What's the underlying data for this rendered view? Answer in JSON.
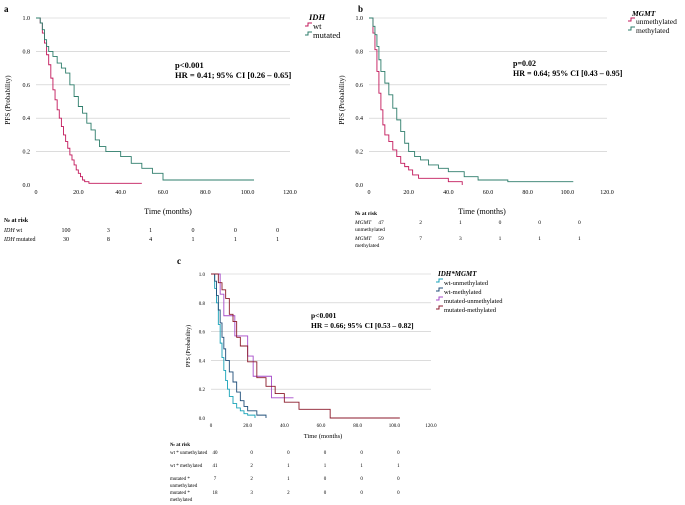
{
  "chart_data": [
    {
      "type": "line",
      "panel_label": "a",
      "xlabel": "Time (months)",
      "ylabel": "PFS (Probability)",
      "xlim": [
        0,
        120
      ],
      "ylim": [
        0,
        1.0
      ],
      "x_ticks": [
        "0",
        "20.0",
        "40.0",
        "60.0",
        "80.0",
        "100.0",
        "120.0"
      ],
      "y_ticks": [
        "0.0",
        "0.2",
        "0.4",
        "0.6",
        "0.8",
        "1.0"
      ],
      "grid": "horizontal",
      "legend": {
        "title": "IDH",
        "placement": "top-right"
      },
      "annotation": [
        "p<0.001",
        "HR = 0.41; 95% CI [0.26 – 0.65]"
      ],
      "series": [
        {
          "name": "wt",
          "color": "#c2185b",
          "x": [
            0,
            2,
            3,
            4,
            5,
            6,
            7,
            8,
            9,
            10,
            11,
            12,
            13,
            14,
            15,
            16,
            17,
            18,
            19,
            20,
            21,
            22,
            23,
            25,
            28,
            30,
            35,
            50
          ],
          "y": [
            1.0,
            0.97,
            0.91,
            0.85,
            0.78,
            0.72,
            0.64,
            0.57,
            0.51,
            0.45,
            0.4,
            0.35,
            0.3,
            0.26,
            0.22,
            0.18,
            0.15,
            0.12,
            0.09,
            0.07,
            0.05,
            0.03,
            0.02,
            0.01,
            0.01,
            0.01,
            0.01,
            0.01
          ]
        },
        {
          "name": "mutated",
          "color": "#2e7d6b",
          "x": [
            0,
            2,
            3,
            4,
            5,
            6,
            8,
            10,
            12,
            14,
            16,
            18,
            20,
            22,
            24,
            26,
            28,
            30,
            33,
            36,
            40,
            45,
            50,
            55,
            60,
            65,
            75,
            90,
            103
          ],
          "y": [
            1.0,
            0.97,
            0.93,
            0.87,
            0.83,
            0.8,
            0.77,
            0.73,
            0.7,
            0.67,
            0.6,
            0.53,
            0.47,
            0.43,
            0.37,
            0.33,
            0.27,
            0.23,
            0.2,
            0.2,
            0.17,
            0.13,
            0.1,
            0.07,
            0.03,
            0.03,
            0.03,
            0.03,
            0.03
          ]
        }
      ],
      "risk_table": {
        "title": "№ at risk",
        "rows": [
          {
            "group": "IDH",
            "subtitle": "wt",
            "values": [
              "100",
              "3",
              "1",
              "0",
              "0",
              "0"
            ]
          },
          {
            "group": "IDH",
            "subtitle": "mutated",
            "values": [
              "30",
              "8",
              "4",
              "1",
              "1",
              "1"
            ]
          }
        ]
      }
    },
    {
      "type": "line",
      "panel_label": "b",
      "xlabel": "Time (months)",
      "ylabel": "PFS (Probability)",
      "xlim": [
        0,
        120
      ],
      "ylim": [
        0,
        1.0
      ],
      "x_ticks": [
        "0",
        "20.0",
        "40.0",
        "60.0",
        "80.0",
        "100.0",
        "120.0"
      ],
      "y_ticks": [
        "0.0",
        "0.2",
        "0.4",
        "0.6",
        "0.8",
        "1.0"
      ],
      "grid": "horizontal",
      "legend": {
        "title": "MGMT",
        "placement": "top-right"
      },
      "annotation": [
        "p=0.02",
        "HR = 0.64; 95% CI [0.43 – 0.95]"
      ],
      "series": [
        {
          "name": "unmethylated",
          "color": "#c2185b",
          "x": [
            0,
            2,
            3,
            4,
            5,
            6,
            7,
            8,
            9,
            10,
            12,
            14,
            16,
            18,
            20,
            22,
            25,
            30,
            40,
            47
          ],
          "y": [
            1.0,
            0.91,
            0.81,
            0.68,
            0.55,
            0.45,
            0.36,
            0.3,
            0.3,
            0.26,
            0.21,
            0.17,
            0.13,
            0.11,
            0.09,
            0.06,
            0.04,
            0.04,
            0.02,
            0.0
          ]
        },
        {
          "name": "methylated",
          "color": "#2e7d6b",
          "x": [
            0,
            2,
            3,
            4,
            5,
            6,
            8,
            10,
            12,
            14,
            16,
            18,
            20,
            23,
            26,
            30,
            35,
            40,
            48,
            55,
            70,
            90,
            103
          ],
          "y": [
            1.0,
            0.95,
            0.9,
            0.83,
            0.75,
            0.68,
            0.61,
            0.54,
            0.46,
            0.39,
            0.32,
            0.25,
            0.2,
            0.17,
            0.15,
            0.12,
            0.1,
            0.08,
            0.05,
            0.03,
            0.02,
            0.02,
            0.02
          ]
        }
      ],
      "risk_table": {
        "title": "№ at risk",
        "rows": [
          {
            "group": "MGMT",
            "subtitle": "unmethylated",
            "values": [
              "47",
              "2",
              "1",
              "0",
              "0",
              "0"
            ]
          },
          {
            "group": "MGMT",
            "subtitle": "methylated",
            "values": [
              "59",
              "7",
              "3",
              "1",
              "1",
              "1"
            ]
          }
        ]
      }
    },
    {
      "type": "line",
      "panel_label": "c",
      "xlabel": "Time (months)",
      "ylabel": "PFS (Probability)",
      "xlim": [
        0,
        120
      ],
      "ylim": [
        0,
        1.0
      ],
      "x_ticks": [
        "0",
        "20.0",
        "40.0",
        "60.0",
        "80.0",
        "100.0",
        "120.0"
      ],
      "y_ticks": [
        "0.0",
        "0.2",
        "0.4",
        "0.6",
        "0.8",
        "1.0"
      ],
      "grid": "horizontal",
      "legend": {
        "title": "IDH*MGMT",
        "placement": "top-right"
      },
      "annotation": [
        "p<0.001",
        "HR = 0.66; 95% CI [0.53 – 0.82]"
      ],
      "series": [
        {
          "name": "wt-unmethylated",
          "color": "#17a2b8",
          "x": [
            0,
            2,
            3,
            4,
            5,
            6,
            7,
            8,
            9,
            10,
            12,
            14,
            16,
            18,
            20,
            24
          ],
          "y": [
            1.0,
            0.9,
            0.8,
            0.65,
            0.52,
            0.42,
            0.33,
            0.26,
            0.2,
            0.15,
            0.1,
            0.07,
            0.05,
            0.03,
            0.02,
            0.0
          ]
        },
        {
          "name": "wt-methylated",
          "color": "#1f4e79",
          "x": [
            0,
            2,
            3,
            4,
            5,
            6,
            7,
            8,
            10,
            12,
            14,
            16,
            18,
            20,
            25,
            30
          ],
          "y": [
            1.0,
            0.95,
            0.85,
            0.75,
            0.66,
            0.56,
            0.48,
            0.4,
            0.32,
            0.25,
            0.18,
            0.12,
            0.08,
            0.05,
            0.02,
            0.0
          ]
        },
        {
          "name": "mutated-unmethylated",
          "color": "#a64ac9",
          "x": [
            0,
            5,
            7,
            10,
            13,
            17,
            20,
            23,
            28,
            33,
            38,
            45
          ],
          "y": [
            1.0,
            0.86,
            0.71,
            0.71,
            0.57,
            0.57,
            0.43,
            0.29,
            0.29,
            0.14,
            0.14,
            0.14
          ]
        },
        {
          "name": "mutated-methylated",
          "color": "#8b1a2b",
          "x": [
            0,
            4,
            6,
            8,
            10,
            12,
            14,
            16,
            20,
            25,
            30,
            35,
            40,
            48,
            65,
            85,
            103
          ],
          "y": [
            1.0,
            0.94,
            0.89,
            0.83,
            0.72,
            0.67,
            0.56,
            0.5,
            0.39,
            0.28,
            0.22,
            0.17,
            0.11,
            0.06,
            0.0,
            0.0,
            0.0
          ]
        }
      ],
      "risk_table": {
        "title": "№ at risk",
        "rows": [
          {
            "group": "wt * unmethylated",
            "subtitle": "",
            "values": [
              "40",
              "0",
              "0",
              "0",
              "0",
              "0"
            ]
          },
          {
            "group": "wt * methylated",
            "subtitle": "",
            "values": [
              "41",
              "2",
              "1",
              "1",
              "1",
              "1"
            ]
          },
          {
            "group": "mutated *",
            "subtitle": "unmethylated",
            "values": [
              "7",
              "2",
              "1",
              "0",
              "0",
              "0"
            ]
          },
          {
            "group": "mutated *",
            "subtitle": "methylated",
            "values": [
              "18",
              "3",
              "2",
              "0",
              "0",
              "0"
            ]
          }
        ]
      }
    }
  ]
}
